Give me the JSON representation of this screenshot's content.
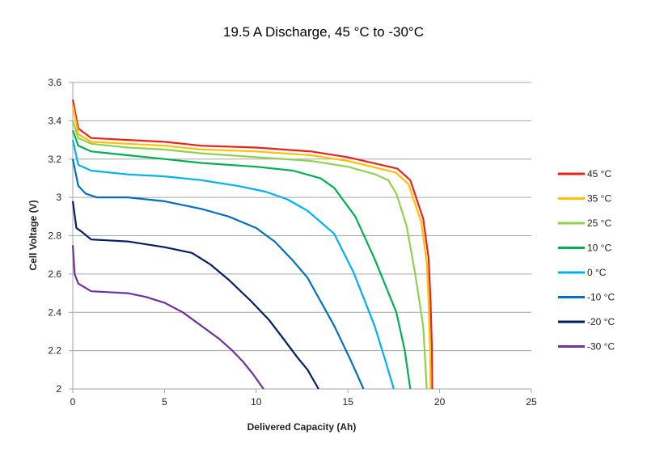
{
  "chart_data": {
    "type": "line",
    "title": "19.5 A Discharge, 45 °C to -30°C",
    "xlabel": "Delivered Capacity  (Ah)",
    "ylabel": "Cell Voltage (V)",
    "xlim": [
      0,
      25
    ],
    "ylim": [
      2,
      3.6
    ],
    "xticks": [
      "0",
      "5",
      "10",
      "15",
      "20",
      "25"
    ],
    "yticks": [
      "2",
      "2.2",
      "2.4",
      "2.6",
      "2.8",
      "3",
      "3.2",
      "3.4",
      "3.6"
    ],
    "grid": "horizontal",
    "legend": "right",
    "series": [
      {
        "name": "45 °C",
        "color": "#e8231f",
        "points": [
          [
            0,
            3.51
          ],
          [
            0.3,
            3.36
          ],
          [
            1,
            3.31
          ],
          [
            3,
            3.3
          ],
          [
            5,
            3.29
          ],
          [
            7,
            3.27
          ],
          [
            10,
            3.26
          ],
          [
            13,
            3.24
          ],
          [
            15,
            3.21
          ],
          [
            17.7,
            3.15
          ],
          [
            18.4,
            3.09
          ],
          [
            19.1,
            2.89
          ],
          [
            19.4,
            2.68
          ],
          [
            19.5,
            2.47
          ],
          [
            19.58,
            2.2
          ],
          [
            19.6,
            2.0
          ]
        ]
      },
      {
        "name": "35 °C",
        "color": "#ffc000",
        "points": [
          [
            0,
            3.48
          ],
          [
            0.3,
            3.33
          ],
          [
            1,
            3.29
          ],
          [
            3,
            3.28
          ],
          [
            5,
            3.27
          ],
          [
            7,
            3.25
          ],
          [
            10,
            3.24
          ],
          [
            13,
            3.22
          ],
          [
            15,
            3.19
          ],
          [
            17.6,
            3.13
          ],
          [
            18.3,
            3.07
          ],
          [
            19.0,
            2.87
          ],
          [
            19.3,
            2.66
          ],
          [
            19.4,
            2.45
          ],
          [
            19.48,
            2.2
          ],
          [
            19.5,
            2.0
          ]
        ]
      },
      {
        "name": "25 °C",
        "color": "#92d050",
        "points": [
          [
            0,
            3.4
          ],
          [
            0.3,
            3.31
          ],
          [
            1,
            3.28
          ],
          [
            3,
            3.26
          ],
          [
            5,
            3.25
          ],
          [
            7,
            3.23
          ],
          [
            10,
            3.21
          ],
          [
            13,
            3.19
          ],
          [
            15,
            3.16
          ],
          [
            16.5,
            3.12
          ],
          [
            17.2,
            3.09
          ],
          [
            17.64,
            3.02
          ],
          [
            18.2,
            2.85
          ],
          [
            18.65,
            2.61
          ],
          [
            19.1,
            2.33
          ],
          [
            19.3,
            2.0
          ]
        ]
      },
      {
        "name": "10 °C",
        "color": "#00b050",
        "points": [
          [
            0,
            3.35
          ],
          [
            0.3,
            3.27
          ],
          [
            1,
            3.24
          ],
          [
            3,
            3.22
          ],
          [
            5,
            3.2
          ],
          [
            7,
            3.18
          ],
          [
            10,
            3.16
          ],
          [
            12,
            3.14
          ],
          [
            13.5,
            3.1
          ],
          [
            14.25,
            3.05
          ],
          [
            15.4,
            2.9
          ],
          [
            16.45,
            2.68
          ],
          [
            17.64,
            2.4
          ],
          [
            18.1,
            2.2
          ],
          [
            18.4,
            2.0
          ]
        ]
      },
      {
        "name": "0 °C",
        "color": "#00b0f0",
        "points": [
          [
            0,
            3.3
          ],
          [
            0.3,
            3.17
          ],
          [
            1,
            3.14
          ],
          [
            3,
            3.12
          ],
          [
            5,
            3.11
          ],
          [
            7,
            3.09
          ],
          [
            9,
            3.06
          ],
          [
            10.5,
            3.03
          ],
          [
            11.7,
            2.99
          ],
          [
            12.8,
            2.93
          ],
          [
            14.25,
            2.81
          ],
          [
            15.3,
            2.61
          ],
          [
            16.45,
            2.33
          ],
          [
            17.0,
            2.16
          ],
          [
            17.5,
            2.0
          ]
        ]
      },
      {
        "name": "-10 °C",
        "color": "#0070c0",
        "points": [
          [
            0,
            3.2
          ],
          [
            0.3,
            3.06
          ],
          [
            0.7,
            3.02
          ],
          [
            1.3,
            3.0
          ],
          [
            3,
            3.0
          ],
          [
            5,
            2.98
          ],
          [
            7,
            2.94
          ],
          [
            8.5,
            2.9
          ],
          [
            10,
            2.84
          ],
          [
            11,
            2.77
          ],
          [
            12,
            2.67
          ],
          [
            12.8,
            2.58
          ],
          [
            14.25,
            2.33
          ],
          [
            15.1,
            2.16
          ],
          [
            15.85,
            2.0
          ]
        ]
      },
      {
        "name": "-20 °C",
        "color": "#002060",
        "points": [
          [
            0,
            2.98
          ],
          [
            0.2,
            2.84
          ],
          [
            0.5,
            2.82
          ],
          [
            1,
            2.78
          ],
          [
            3,
            2.77
          ],
          [
            5,
            2.74
          ],
          [
            6.5,
            2.71
          ],
          [
            7.5,
            2.65
          ],
          [
            8.5,
            2.57
          ],
          [
            9.7,
            2.46
          ],
          [
            10.7,
            2.36
          ],
          [
            11.5,
            2.26
          ],
          [
            12.2,
            2.17
          ],
          [
            12.8,
            2.1
          ],
          [
            13.4,
            2.0
          ]
        ]
      },
      {
        "name": "-30 °C",
        "color": "#7030a0",
        "points": [
          [
            0,
            2.75
          ],
          [
            0.1,
            2.6
          ],
          [
            0.3,
            2.55
          ],
          [
            1,
            2.51
          ],
          [
            3,
            2.5
          ],
          [
            4,
            2.48
          ],
          [
            5,
            2.45
          ],
          [
            6,
            2.4
          ],
          [
            7,
            2.33
          ],
          [
            8,
            2.26
          ],
          [
            8.7,
            2.2
          ],
          [
            9.3,
            2.14
          ],
          [
            9.8,
            2.08
          ],
          [
            10.4,
            2.0
          ]
        ]
      }
    ]
  }
}
